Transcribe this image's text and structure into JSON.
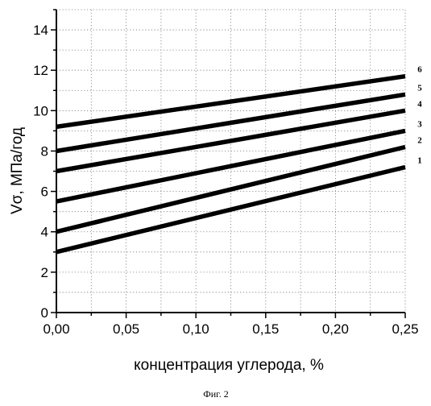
{
  "caption": "Фиг. 2",
  "chart_data": {
    "type": "line",
    "xlabel": "концентрация углерода, %",
    "ylabel": "Vσ, МПа/год",
    "xlim": [
      0,
      0.25
    ],
    "ylim": [
      0,
      15
    ],
    "x_ticks": [
      "0,00",
      "0,05",
      "0,10",
      "0,15",
      "0,20",
      "0,25"
    ],
    "y_ticks": [
      "0",
      "2",
      "4",
      "6",
      "8",
      "10",
      "12",
      "14"
    ],
    "grid": true,
    "series": [
      {
        "name": "1",
        "x": [
          0,
          0.25
        ],
        "y": [
          3.0,
          7.2
        ]
      },
      {
        "name": "2",
        "x": [
          0,
          0.25
        ],
        "y": [
          4.0,
          8.2
        ]
      },
      {
        "name": "3",
        "x": [
          0,
          0.25
        ],
        "y": [
          5.5,
          9.0
        ]
      },
      {
        "name": "4",
        "x": [
          0,
          0.25
        ],
        "y": [
          7.0,
          10.0
        ]
      },
      {
        "name": "5",
        "x": [
          0,
          0.25
        ],
        "y": [
          8.0,
          10.8
        ]
      },
      {
        "name": "6",
        "x": [
          0,
          0.25
        ],
        "y": [
          9.2,
          11.7
        ]
      }
    ]
  }
}
